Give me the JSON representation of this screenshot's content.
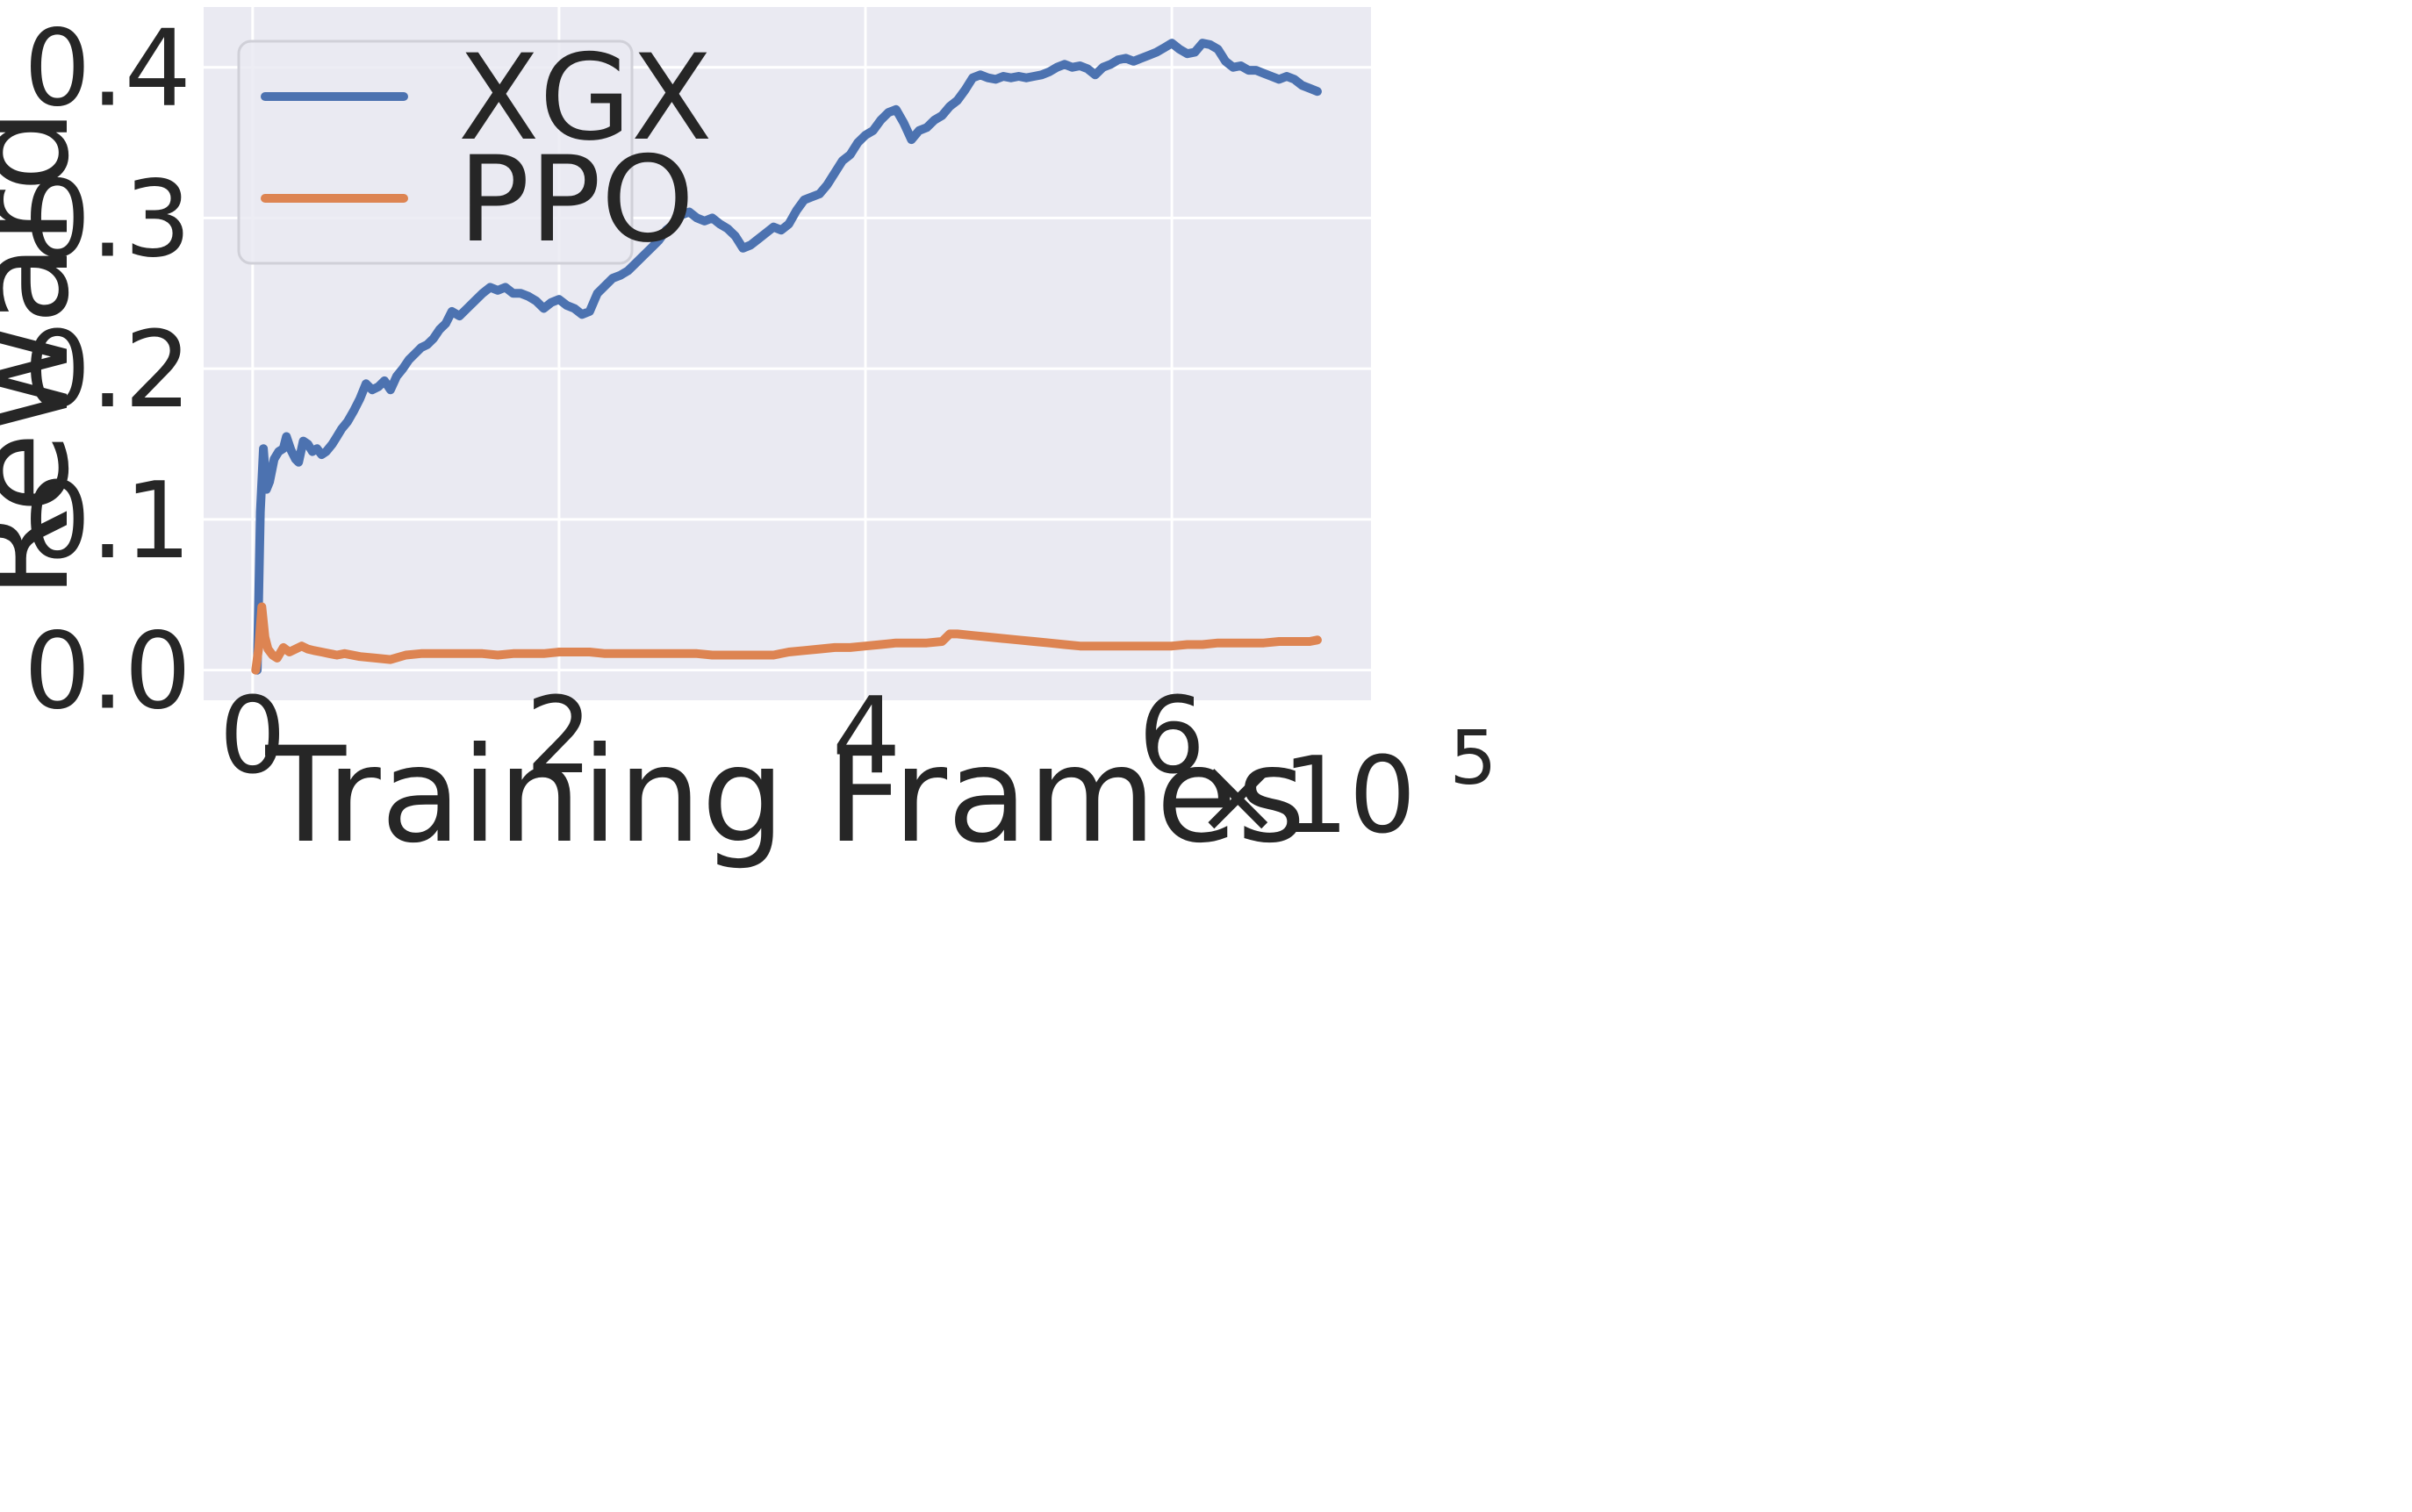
{
  "chart_data": {
    "type": "line",
    "xlabel": "Training Frames",
    "ylabel": "Reward",
    "x_offset_text": {
      "base": "×10",
      "exponent": "5"
    },
    "xlim": [
      -0.32,
      7.3
    ],
    "ylim": [
      -0.02,
      0.44
    ],
    "x_ticks": [
      0,
      2,
      4,
      6
    ],
    "x_tick_labels": [
      "0",
      "2",
      "4",
      "6"
    ],
    "y_ticks": [
      0.0,
      0.1,
      0.2,
      0.3,
      0.4
    ],
    "y_tick_labels": [
      "0.0",
      "0.1",
      "0.2",
      "0.3",
      "0.4"
    ],
    "grid": true,
    "background": "#eaeaf2",
    "legend_position": "top-left",
    "series": [
      {
        "name": "XGX",
        "color": "#4c72b0",
        "x": [
          0.03,
          0.05,
          0.07,
          0.09,
          0.11,
          0.14,
          0.17,
          0.2,
          0.22,
          0.25,
          0.28,
          0.3,
          0.33,
          0.36,
          0.39,
          0.42,
          0.45,
          0.48,
          0.52,
          0.55,
          0.58,
          0.62,
          0.66,
          0.7,
          0.74,
          0.78,
          0.82,
          0.86,
          0.9,
          0.94,
          0.98,
          1.02,
          1.06,
          1.1,
          1.14,
          1.18,
          1.22,
          1.26,
          1.3,
          1.35,
          1.4,
          1.45,
          1.5,
          1.55,
          1.6,
          1.65,
          1.7,
          1.75,
          1.8,
          1.85,
          1.9,
          1.95,
          2.0,
          2.05,
          2.1,
          2.15,
          2.2,
          2.25,
          2.3,
          2.35,
          2.4,
          2.45,
          2.5,
          2.55,
          2.6,
          2.65,
          2.7,
          2.75,
          2.8,
          2.85,
          2.9,
          2.95,
          3.0,
          3.05,
          3.1,
          3.15,
          3.2,
          3.25,
          3.3,
          3.35,
          3.4,
          3.45,
          3.5,
          3.55,
          3.6,
          3.65,
          3.7,
          3.75,
          3.8,
          3.85,
          3.9,
          3.95,
          4.0,
          4.05,
          4.1,
          4.15,
          4.2,
          4.25,
          4.3,
          4.35,
          4.4,
          4.45,
          4.5,
          4.55,
          4.6,
          4.65,
          4.7,
          4.75,
          4.8,
          4.85,
          4.9,
          4.95,
          5.0,
          5.05,
          5.1,
          5.15,
          5.2,
          5.25,
          5.3,
          5.35,
          5.4,
          5.45,
          5.5,
          5.55,
          5.6,
          5.65,
          5.7,
          5.75,
          5.8,
          5.85,
          5.9,
          5.95,
          6.0,
          6.05,
          6.1,
          6.15,
          6.2,
          6.25,
          6.3,
          6.35,
          6.4,
          6.45,
          6.5,
          6.55,
          6.6,
          6.65,
          6.7,
          6.75,
          6.8,
          6.85,
          6.9,
          6.95
        ],
        "y": [
          0.0,
          0.105,
          0.147,
          0.12,
          0.125,
          0.14,
          0.145,
          0.147,
          0.155,
          0.146,
          0.14,
          0.138,
          0.152,
          0.15,
          0.145,
          0.147,
          0.143,
          0.145,
          0.15,
          0.155,
          0.16,
          0.165,
          0.172,
          0.18,
          0.19,
          0.186,
          0.188,
          0.192,
          0.186,
          0.195,
          0.2,
          0.206,
          0.21,
          0.214,
          0.216,
          0.22,
          0.226,
          0.23,
          0.238,
          0.235,
          0.24,
          0.245,
          0.25,
          0.254,
          0.252,
          0.254,
          0.25,
          0.25,
          0.248,
          0.245,
          0.24,
          0.244,
          0.246,
          0.242,
          0.24,
          0.236,
          0.238,
          0.25,
          0.255,
          0.26,
          0.262,
          0.265,
          0.27,
          0.275,
          0.28,
          0.285,
          0.292,
          0.296,
          0.302,
          0.304,
          0.3,
          0.298,
          0.3,
          0.296,
          0.293,
          0.288,
          0.28,
          0.282,
          0.286,
          0.29,
          0.294,
          0.292,
          0.296,
          0.305,
          0.312,
          0.314,
          0.316,
          0.322,
          0.33,
          0.338,
          0.342,
          0.35,
          0.355,
          0.358,
          0.365,
          0.37,
          0.372,
          0.363,
          0.352,
          0.358,
          0.36,
          0.365,
          0.368,
          0.374,
          0.378,
          0.385,
          0.393,
          0.395,
          0.393,
          0.392,
          0.394,
          0.393,
          0.394,
          0.393,
          0.394,
          0.395,
          0.397,
          0.4,
          0.402,
          0.4,
          0.401,
          0.399,
          0.395,
          0.4,
          0.402,
          0.405,
          0.406,
          0.404,
          0.406,
          0.408,
          0.41,
          0.413,
          0.416,
          0.412,
          0.409,
          0.41,
          0.416,
          0.415,
          0.412,
          0.404,
          0.4,
          0.401,
          0.398,
          0.398,
          0.396,
          0.394,
          0.392,
          0.394,
          0.392,
          0.388,
          0.386,
          0.384
        ]
      },
      {
        "name": "PPO",
        "color": "#dd8452",
        "x": [
          0.02,
          0.04,
          0.06,
          0.08,
          0.1,
          0.13,
          0.16,
          0.2,
          0.24,
          0.28,
          0.32,
          0.36,
          0.4,
          0.45,
          0.5,
          0.55,
          0.6,
          0.7,
          0.8,
          0.9,
          1.0,
          1.1,
          1.2,
          1.3,
          1.4,
          1.5,
          1.6,
          1.7,
          1.8,
          1.9,
          2.0,
          2.1,
          2.2,
          2.3,
          2.4,
          2.5,
          2.6,
          2.7,
          2.8,
          2.9,
          3.0,
          3.1,
          3.2,
          3.3,
          3.4,
          3.5,
          3.6,
          3.7,
          3.8,
          3.9,
          4.0,
          4.1,
          4.2,
          4.3,
          4.4,
          4.5,
          4.55,
          4.6,
          4.7,
          4.8,
          4.9,
          5.0,
          5.1,
          5.2,
          5.3,
          5.4,
          5.5,
          5.6,
          5.7,
          5.8,
          5.9,
          6.0,
          6.1,
          6.2,
          6.3,
          6.4,
          6.5,
          6.6,
          6.7,
          6.8,
          6.9,
          6.95
        ],
        "y": [
          0.0,
          0.015,
          0.042,
          0.022,
          0.014,
          0.01,
          0.008,
          0.015,
          0.012,
          0.014,
          0.016,
          0.014,
          0.013,
          0.012,
          0.011,
          0.01,
          0.011,
          0.009,
          0.008,
          0.007,
          0.01,
          0.011,
          0.011,
          0.011,
          0.011,
          0.011,
          0.01,
          0.011,
          0.011,
          0.011,
          0.012,
          0.012,
          0.012,
          0.011,
          0.011,
          0.011,
          0.011,
          0.011,
          0.011,
          0.011,
          0.01,
          0.01,
          0.01,
          0.01,
          0.01,
          0.012,
          0.013,
          0.014,
          0.015,
          0.015,
          0.016,
          0.017,
          0.018,
          0.018,
          0.018,
          0.019,
          0.024,
          0.024,
          0.023,
          0.022,
          0.021,
          0.02,
          0.019,
          0.018,
          0.017,
          0.016,
          0.016,
          0.016,
          0.016,
          0.016,
          0.016,
          0.016,
          0.017,
          0.017,
          0.018,
          0.018,
          0.018,
          0.018,
          0.019,
          0.019,
          0.019,
          0.02
        ]
      }
    ]
  }
}
